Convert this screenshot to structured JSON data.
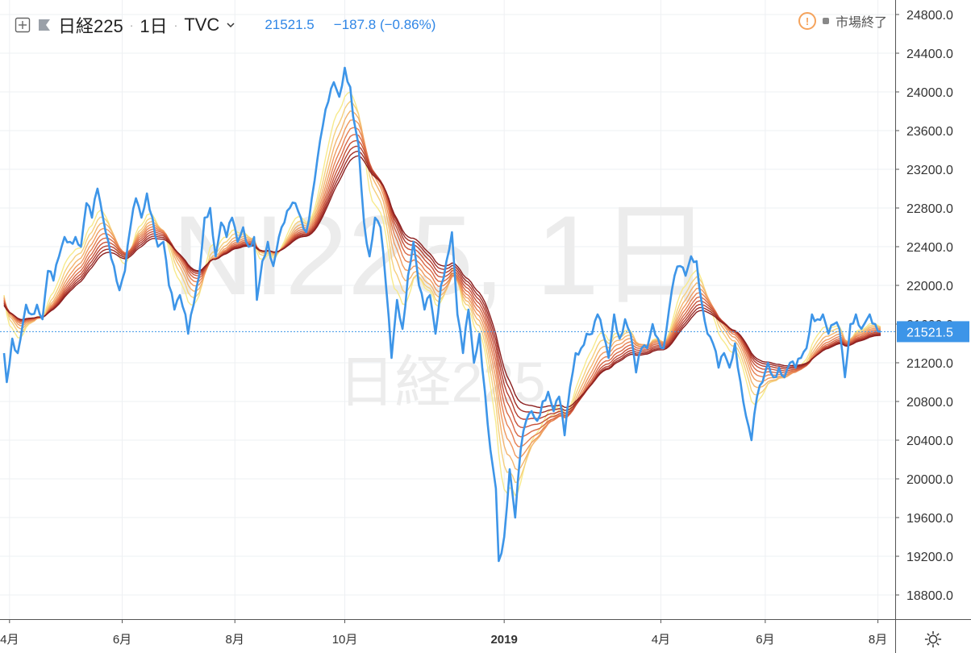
{
  "header": {
    "symbol": "日経225",
    "interval": "1日",
    "exchange": "TVC",
    "last_price": "21521.5",
    "change": "−187.8 (−0.86%)",
    "market_status": "市場終了",
    "warning_symbol": "!"
  },
  "watermark": {
    "line1": "NI225, 1日",
    "line2": "日経225"
  },
  "colors": {
    "price_line": "#3d95e8",
    "price_label_bg": "#3d95e8",
    "ribbon": [
      "#f7ea8c",
      "#f5cf7d",
      "#f3b46e",
      "#ef9a60",
      "#e68052",
      "#d86846",
      "#c8523a",
      "#b53e30",
      "#a02d27",
      "#8b1f1f"
    ],
    "grid": "#eef0f3",
    "axis_text": "#333333"
  },
  "chart_data": {
    "type": "line",
    "ylim": [
      18550,
      24950
    ],
    "y_ticks": [
      24800,
      24400,
      24000,
      23600,
      23200,
      22800,
      22400,
      22000,
      21600,
      21200,
      20800,
      20400,
      20000,
      19600,
      19200,
      18800
    ],
    "y_tick_labels": [
      "24800.0",
      "24400.0",
      "24000.0",
      "23600.0",
      "23200.0",
      "22800.0",
      "22400.0",
      "22000.0",
      "21600.0",
      "21200.0",
      "20800.0",
      "20400.0",
      "20000.0",
      "19600.0",
      "19200.0",
      "18800.0"
    ],
    "x_ticks": [
      {
        "label": "4月",
        "idx": 2
      },
      {
        "label": "6月",
        "idx": 43
      },
      {
        "label": "8月",
        "idx": 84
      },
      {
        "label": "10月",
        "idx": 124
      },
      {
        "label": "2019",
        "idx": 182,
        "bold": true
      },
      {
        "label": "4月",
        "idx": 239
      },
      {
        "label": "6月",
        "idx": 277
      },
      {
        "label": "8月",
        "idx": 318
      }
    ],
    "last_value": 21521.5,
    "last_value_label": "21521.5",
    "n_points": 320,
    "anchors": [
      [
        0,
        21300
      ],
      [
        1,
        21000
      ],
      [
        3,
        21450
      ],
      [
        5,
        21300
      ],
      [
        8,
        21800
      ],
      [
        10,
        21700
      ],
      [
        12,
        21800
      ],
      [
        14,
        21650
      ],
      [
        16,
        22150
      ],
      [
        18,
        22050
      ],
      [
        20,
        22300
      ],
      [
        22,
        22500
      ],
      [
        24,
        22450
      ],
      [
        26,
        22500
      ],
      [
        28,
        22400
      ],
      [
        30,
        22850
      ],
      [
        32,
        22700
      ],
      [
        34,
        23000
      ],
      [
        36,
        22700
      ],
      [
        38,
        22450
      ],
      [
        40,
        22200
      ],
      [
        42,
        21950
      ],
      [
        44,
        22150
      ],
      [
        46,
        22600
      ],
      [
        48,
        22900
      ],
      [
        50,
        22700
      ],
      [
        52,
        22950
      ],
      [
        54,
        22700
      ],
      [
        56,
        22400
      ],
      [
        58,
        22450
      ],
      [
        60,
        22000
      ],
      [
        62,
        21750
      ],
      [
        64,
        21900
      ],
      [
        66,
        21700
      ],
      [
        67,
        21500
      ],
      [
        69,
        21800
      ],
      [
        71,
        22100
      ],
      [
        73,
        22700
      ],
      [
        75,
        22800
      ],
      [
        77,
        22300
      ],
      [
        79,
        22650
      ],
      [
        81,
        22500
      ],
      [
        83,
        22700
      ],
      [
        85,
        22450
      ],
      [
        87,
        22600
      ],
      [
        89,
        22400
      ],
      [
        91,
        22500
      ],
      [
        92,
        21850
      ],
      [
        94,
        22250
      ],
      [
        96,
        22450
      ],
      [
        98,
        22200
      ],
      [
        100,
        22500
      ],
      [
        102,
        22650
      ],
      [
        104,
        22800
      ],
      [
        106,
        22850
      ],
      [
        108,
        22700
      ],
      [
        110,
        22550
      ],
      [
        112,
        22900
      ],
      [
        114,
        23300
      ],
      [
        116,
        23650
      ],
      [
        118,
        23900
      ],
      [
        120,
        24100
      ],
      [
        122,
        23950
      ],
      [
        124,
        24250
      ],
      [
        126,
        24050
      ],
      [
        127,
        23750
      ],
      [
        129,
        23450
      ],
      [
        131,
        22650
      ],
      [
        133,
        22300
      ],
      [
        135,
        22700
      ],
      [
        137,
        22600
      ],
      [
        139,
        22000
      ],
      [
        141,
        21250
      ],
      [
        143,
        21850
      ],
      [
        145,
        21550
      ],
      [
        147,
        22100
      ],
      [
        149,
        22450
      ],
      [
        151,
        22000
      ],
      [
        153,
        21750
      ],
      [
        155,
        21900
      ],
      [
        157,
        21500
      ],
      [
        159,
        22000
      ],
      [
        161,
        22250
      ],
      [
        163,
        22550
      ],
      [
        165,
        21700
      ],
      [
        167,
        21300
      ],
      [
        169,
        21750
      ],
      [
        171,
        21200
      ],
      [
        173,
        21500
      ],
      [
        175,
        20900
      ],
      [
        177,
        20300
      ],
      [
        179,
        19900
      ],
      [
        180,
        19150
      ],
      [
        182,
        19400
      ],
      [
        184,
        20100
      ],
      [
        186,
        19600
      ],
      [
        188,
        20300
      ],
      [
        190,
        20600
      ],
      [
        192,
        20700
      ],
      [
        194,
        20600
      ],
      [
        196,
        20800
      ],
      [
        198,
        20900
      ],
      [
        200,
        20700
      ],
      [
        202,
        20850
      ],
      [
        204,
        20450
      ],
      [
        206,
        20950
      ],
      [
        208,
        21300
      ],
      [
        210,
        21350
      ],
      [
        212,
        21500
      ],
      [
        214,
        21500
      ],
      [
        216,
        21700
      ],
      [
        218,
        21500
      ],
      [
        220,
        21250
      ],
      [
        222,
        21700
      ],
      [
        224,
        21450
      ],
      [
        226,
        21650
      ],
      [
        228,
        21500
      ],
      [
        230,
        21100
      ],
      [
        232,
        21350
      ],
      [
        234,
        21350
      ],
      [
        236,
        21600
      ],
      [
        238,
        21450
      ],
      [
        240,
        21350
      ],
      [
        242,
        21750
      ],
      [
        244,
        22100
      ],
      [
        246,
        22200
      ],
      [
        248,
        22100
      ],
      [
        250,
        22300
      ],
      [
        252,
        22250
      ],
      [
        254,
        21800
      ],
      [
        256,
        21500
      ],
      [
        258,
        21400
      ],
      [
        260,
        21150
      ],
      [
        262,
        21300
      ],
      [
        264,
        21150
      ],
      [
        266,
        21400
      ],
      [
        268,
        21000
      ],
      [
        270,
        20650
      ],
      [
        272,
        20400
      ],
      [
        274,
        20850
      ],
      [
        276,
        21000
      ],
      [
        278,
        21200
      ],
      [
        280,
        21050
      ],
      [
        282,
        21150
      ],
      [
        284,
        21050
      ],
      [
        286,
        21200
      ],
      [
        288,
        21150
      ],
      [
        290,
        21250
      ],
      [
        292,
        21350
      ],
      [
        294,
        21700
      ],
      [
        296,
        21650
      ],
      [
        298,
        21700
      ],
      [
        300,
        21500
      ],
      [
        302,
        21600
      ],
      [
        304,
        21550
      ],
      [
        306,
        21050
      ],
      [
        308,
        21600
      ],
      [
        310,
        21700
      ],
      [
        312,
        21550
      ],
      [
        314,
        21650
      ],
      [
        315,
        21700
      ],
      [
        317,
        21600
      ],
      [
        319,
        21521.5
      ]
    ]
  }
}
